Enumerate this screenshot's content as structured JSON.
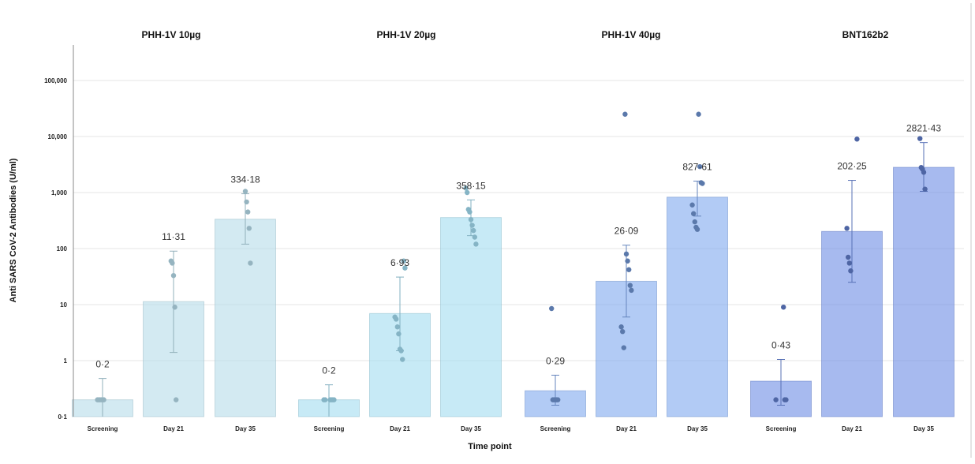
{
  "chart_data": {
    "type": "bar",
    "xlabel": "Time point",
    "ylabel": "Anti SARS CoV-2 Antibodies (U/ml)",
    "yscale": "log",
    "ylim": [
      0.1,
      200000
    ],
    "yticks": [
      {
        "value": 0.1,
        "label": "0·1"
      },
      {
        "value": 1,
        "label": "1"
      },
      {
        "value": 10,
        "label": "10"
      },
      {
        "value": 100,
        "label": "100"
      },
      {
        "value": 1000,
        "label": "1,000"
      },
      {
        "value": 10000,
        "label": "10,000"
      },
      {
        "value": 100000,
        "label": "100,000"
      }
    ],
    "grid": true,
    "panels": [
      {
        "title": "PHH-1V 10µg",
        "color": "#b6dcea",
        "bars": [
          {
            "category": "Screening",
            "value": 0.2,
            "label": "0·2",
            "err": [
              0.1,
              0.48
            ],
            "points": [
              0.2,
              0.2,
              0.2,
              0.2,
              0.2,
              0.2
            ]
          },
          {
            "category": "Day 21",
            "value": 11.31,
            "label": "11·31",
            "err": [
              1.4,
              90
            ],
            "points": [
              60,
              55,
              33,
              9,
              0.2
            ]
          },
          {
            "category": "Day 35",
            "value": 334.18,
            "label": "334·18",
            "err": [
              120,
              950
            ],
            "points": [
              1050,
              680,
              450,
              230,
              55
            ]
          }
        ]
      },
      {
        "title": "PHH-1V 20µg",
        "color": "#a2dcf0",
        "bars": [
          {
            "category": "Screening",
            "value": 0.2,
            "label": "0·2",
            "err": [
              0.1,
              0.37
            ],
            "points": [
              0.2,
              0.2,
              0.2,
              0.2,
              0.2,
              0.2
            ]
          },
          {
            "category": "Day 21",
            "value": 6.93,
            "label": "6·93",
            "err": [
              1.5,
              31
            ],
            "points": [
              60,
              45,
              6,
              5.5,
              4,
              3,
              1.6,
              1.5,
              1.05
            ]
          },
          {
            "category": "Day 35",
            "value": 358.15,
            "label": "358·15",
            "err": [
              170,
              740
            ],
            "points": [
              1200,
              1000,
              500,
              450,
              330,
              260,
              210,
              160,
              120
            ]
          }
        ]
      },
      {
        "title": "PHH-1V 40µg",
        "color": "#7fa8ee",
        "bars": [
          {
            "category": "Screening",
            "value": 0.29,
            "label": "0·29",
            "err": [
              0.16,
              0.55
            ],
            "points": [
              8.5,
              0.2,
              0.2,
              0.2,
              0.2,
              0.2
            ]
          },
          {
            "category": "Day 21",
            "value": 26.09,
            "label": "26·09",
            "err": [
              6,
              115
            ],
            "points": [
              25000,
              80,
              60,
              42,
              22,
              18,
              4,
              3.3,
              1.7
            ]
          },
          {
            "category": "Day 35",
            "value": 827.61,
            "label": "827·61",
            "err": [
              380,
              1600
            ],
            "points": [
              25000,
              2900,
              1500,
              1450,
              600,
              420,
              300,
              240,
              220
            ]
          }
        ]
      },
      {
        "title": "BNT162b2",
        "color": "#6d8ce4",
        "bars": [
          {
            "category": "Screening",
            "value": 0.43,
            "label": "0·43",
            "err": [
              0.16,
              1.05
            ],
            "points": [
              9,
              0.2,
              0.2,
              0.2
            ]
          },
          {
            "category": "Day 21",
            "value": 202.25,
            "label": "202·25",
            "err": [
              25,
              1650
            ],
            "points": [
              9000,
              230,
              70,
              55,
              40
            ]
          },
          {
            "category": "Day 35",
            "value": 2821.43,
            "label": "2821·43",
            "err": [
              1050,
              7800
            ],
            "points": [
              9200,
              2800,
              2600,
              2300,
              1150
            ]
          }
        ]
      }
    ]
  }
}
